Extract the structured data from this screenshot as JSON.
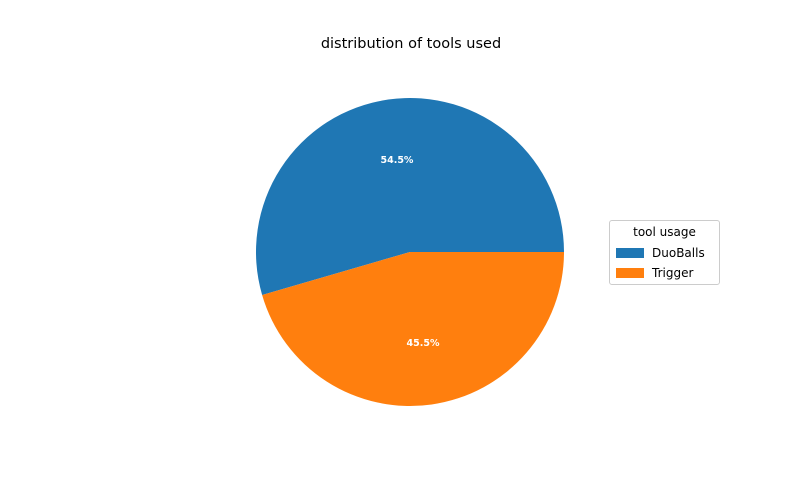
{
  "chart_data": {
    "type": "pie",
    "title": "distribution of tools used",
    "categories": [
      "DuoBalls",
      "Trigger"
    ],
    "values": [
      54.5,
      45.5
    ],
    "labels": [
      "54.5%",
      "45.5%"
    ],
    "colors": [
      "#1f77b4",
      "#ff7f0e"
    ],
    "legend": {
      "title": "tool usage",
      "placement": "right"
    }
  }
}
